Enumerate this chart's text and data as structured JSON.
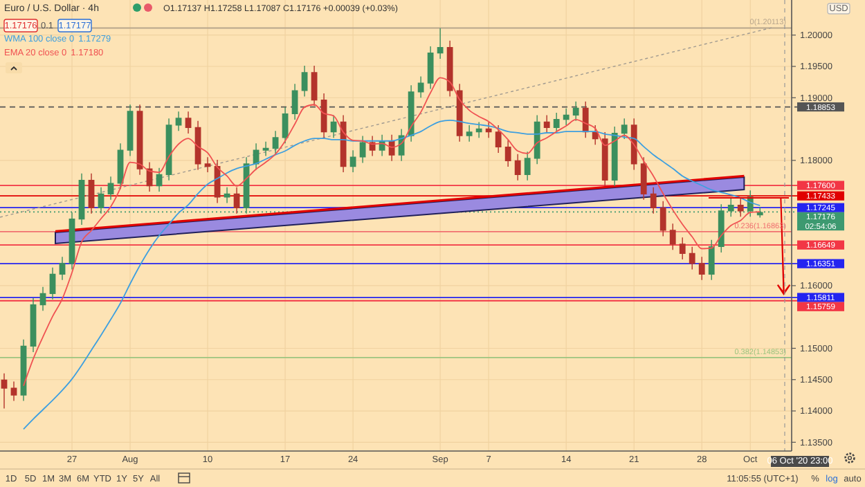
{
  "chart_data": {
    "type": "candlestick",
    "title": "Euro / U.S. Dollar · 4h",
    "categories": [
      null,
      null,
      null,
      null,
      null,
      null,
      null,
      "27",
      null,
      null,
      null,
      null,
      null,
      "Aug",
      null,
      null,
      null,
      null,
      null,
      null,
      null,
      "10",
      null,
      null,
      null,
      null,
      null,
      null,
      null,
      "17",
      null,
      null,
      null,
      null,
      null,
      null,
      "24",
      null,
      null,
      null,
      null,
      null,
      null,
      null,
      null,
      "Sep",
      null,
      null,
      null,
      null,
      "7",
      null,
      null,
      null,
      null,
      null,
      null,
      null,
      "14",
      null,
      null,
      null,
      null,
      null,
      null,
      "21",
      null,
      null,
      null,
      null,
      null,
      null,
      "28",
      null,
      null,
      null,
      null,
      "Oct",
      null
    ],
    "ohlc": [
      [
        1.145,
        1.146,
        1.1404,
        1.1437
      ],
      [
        1.1437,
        1.1447,
        1.1416,
        1.1426
      ],
      [
        1.1426,
        1.1514,
        1.1416,
        1.1504
      ],
      [
        1.1504,
        1.158,
        1.1494,
        1.157
      ],
      [
        1.157,
        1.1598,
        1.156,
        1.1588
      ],
      [
        1.1588,
        1.1629,
        1.1578,
        1.1619
      ],
      [
        1.1619,
        1.1646,
        1.1609,
        1.1636
      ],
      [
        1.1636,
        1.1717,
        1.1626,
        1.1707
      ],
      [
        1.1707,
        1.1779,
        1.1697,
        1.1769
      ],
      [
        1.1769,
        1.1779,
        1.1715,
        1.1725
      ],
      [
        1.1725,
        1.1757,
        1.1715,
        1.1747
      ],
      [
        1.1747,
        1.1774,
        1.1737,
        1.1764
      ],
      [
        1.1764,
        1.1827,
        1.1754,
        1.1817
      ],
      [
        1.1817,
        1.1889,
        1.1807,
        1.1879
      ],
      [
        1.1879,
        1.1889,
        1.1777,
        1.1787
      ],
      [
        1.1787,
        1.1797,
        1.175,
        1.176
      ],
      [
        1.176,
        1.1788,
        1.175,
        1.1778
      ],
      [
        1.1778,
        1.1867,
        1.1768,
        1.1857
      ],
      [
        1.1857,
        1.1878,
        1.1847,
        1.1868
      ],
      [
        1.1868,
        1.1878,
        1.1843,
        1.1853
      ],
      [
        1.1853,
        1.1863,
        1.1785,
        1.1795
      ],
      [
        1.1795,
        1.1805,
        1.1781,
        1.1791
      ],
      [
        1.1791,
        1.1801,
        1.1732,
        1.1742
      ],
      [
        1.1742,
        1.1757,
        1.1732,
        1.1747
      ],
      [
        1.1747,
        1.1757,
        1.1715,
        1.1725
      ],
      [
        1.1725,
        1.1805,
        1.1715,
        1.1795
      ],
      [
        1.1795,
        1.1827,
        1.1785,
        1.1817
      ],
      [
        1.1817,
        1.183,
        1.1807,
        1.182
      ],
      [
        1.182,
        1.1847,
        1.181,
        1.1837
      ],
      [
        1.1837,
        1.1885,
        1.1827,
        1.1875
      ],
      [
        1.1875,
        1.1922,
        1.1865,
        1.1912
      ],
      [
        1.1912,
        1.1951,
        1.1902,
        1.1941
      ],
      [
        1.1941,
        1.1951,
        1.1887,
        1.1897
      ],
      [
        1.1897,
        1.1907,
        1.1836,
        1.1846
      ],
      [
        1.1846,
        1.1872,
        1.1836,
        1.1862
      ],
      [
        1.1862,
        1.1872,
        1.1781,
        1.1791
      ],
      [
        1.1791,
        1.1816,
        1.1781,
        1.1806
      ],
      [
        1.1806,
        1.1839,
        1.1796,
        1.1829
      ],
      [
        1.1829,
        1.1839,
        1.1807,
        1.1817
      ],
      [
        1.1817,
        1.1841,
        1.1807,
        1.1831
      ],
      [
        1.1831,
        1.1841,
        1.1799,
        1.1809
      ],
      [
        1.1809,
        1.185,
        1.1799,
        1.184
      ],
      [
        1.184,
        1.192,
        1.183,
        1.191
      ],
      [
        1.191,
        1.1934,
        1.19,
        1.1924
      ],
      [
        1.1924,
        1.1982,
        1.1914,
        1.1972
      ],
      [
        1.1972,
        1.2011,
        1.1962,
        1.1981
      ],
      [
        1.1981,
        1.1991,
        1.1902,
        1.1912
      ],
      [
        1.1912,
        1.1922,
        1.183,
        1.184
      ],
      [
        1.184,
        1.1856,
        1.183,
        1.1846
      ],
      [
        1.1846,
        1.1861,
        1.1836,
        1.1851
      ],
      [
        1.1851,
        1.1861,
        1.1836,
        1.1846
      ],
      [
        1.1846,
        1.1856,
        1.1812,
        1.1822
      ],
      [
        1.1822,
        1.1832,
        1.179,
        1.18
      ],
      [
        1.18,
        1.181,
        1.1768,
        1.1778
      ],
      [
        1.1778,
        1.1814,
        1.1768,
        1.1804
      ],
      [
        1.1804,
        1.1872,
        1.1794,
        1.1862
      ],
      [
        1.1862,
        1.1872,
        1.1843,
        1.1853
      ],
      [
        1.1853,
        1.1876,
        1.1843,
        1.1866
      ],
      [
        1.1866,
        1.1883,
        1.1856,
        1.1873
      ],
      [
        1.1873,
        1.1894,
        1.1863,
        1.1884
      ],
      [
        1.1884,
        1.1894,
        1.1836,
        1.1846
      ],
      [
        1.1846,
        1.1856,
        1.1825,
        1.1835
      ],
      [
        1.1835,
        1.1845,
        1.1759,
        1.1769
      ],
      [
        1.1769,
        1.1854,
        1.1759,
        1.1844
      ],
      [
        1.1844,
        1.1867,
        1.1834,
        1.1857
      ],
      [
        1.1857,
        1.1867,
        1.1785,
        1.1795
      ],
      [
        1.1795,
        1.1805,
        1.1737,
        1.1747
      ],
      [
        1.1747,
        1.1757,
        1.1715,
        1.1725
      ],
      [
        1.1725,
        1.1735,
        1.1679,
        1.1689
      ],
      [
        1.1689,
        1.1699,
        1.1657,
        1.1667
      ],
      [
        1.1667,
        1.1677,
        1.1642,
        1.1652
      ],
      [
        1.1652,
        1.1662,
        1.1626,
        1.1636
      ],
      [
        1.1636,
        1.1646,
        1.1609,
        1.1619
      ],
      [
        1.1619,
        1.1673,
        1.1609,
        1.1663
      ],
      [
        1.1663,
        1.173,
        1.1653,
        1.172
      ],
      [
        1.172,
        1.1739,
        1.171,
        1.1729
      ],
      [
        1.1729,
        1.1739,
        1.171,
        1.172
      ],
      [
        1.172,
        1.1752,
        1.171,
        1.1742
      ],
      [
        1.17137,
        1.17258,
        1.17087,
        1.17176
      ]
    ],
    "series": [
      {
        "name": "WMA 100 close 0",
        "type": "line",
        "color": "#3d9fe0",
        "values": [
          null,
          null,
          1.1371,
          1.1387,
          1.1402,
          1.1417,
          1.1433,
          1.1451,
          1.1473,
          1.1497,
          1.1521,
          1.1546,
          1.1572,
          1.1603,
          1.1632,
          1.1658,
          1.168,
          1.1698,
          1.1716,
          1.1729,
          1.1747,
          1.1762,
          1.1771,
          1.178,
          1.1787,
          1.1791,
          1.1795,
          1.1802,
          1.1809,
          1.1815,
          1.1824,
          1.1831,
          1.1835,
          1.1835,
          1.1833,
          1.1833,
          1.1831,
          1.1831,
          1.1831,
          1.1831,
          1.1831,
          1.1835,
          1.184,
          1.1846,
          1.1855,
          1.1862,
          1.1864,
          1.1862,
          1.1859,
          1.1857,
          1.1855,
          1.1851,
          1.1846,
          1.1844,
          1.1842,
          1.1842,
          1.1844,
          1.1844,
          1.1846,
          1.1846,
          1.1846,
          1.1846,
          1.1842,
          1.184,
          1.1837,
          1.1835,
          1.1822,
          1.1809,
          1.1798,
          1.1787,
          1.1775,
          1.1767,
          1.176,
          1.1753,
          1.1749,
          1.1745,
          1.174,
          1.1733,
          1.17279
        ]
      },
      {
        "name": "EMA 20 close 0",
        "type": "line",
        "color": "#f05252",
        "values": [
          null,
          null,
          1.144,
          1.1483,
          1.1518,
          1.1551,
          1.1579,
          1.1621,
          1.167,
          1.1688,
          1.1707,
          1.1726,
          1.1756,
          1.1797,
          1.1794,
          1.1783,
          1.1781,
          1.1806,
          1.1826,
          1.1835,
          1.1822,
          1.1812,
          1.1789,
          1.1775,
          1.1759,
          1.1771,
          1.1786,
          1.1797,
          1.181,
          1.1831,
          1.1858,
          1.1885,
          1.1889,
          1.1875,
          1.1871,
          1.1845,
          1.1832,
          1.1831,
          1.1826,
          1.1827,
          1.1821,
          1.1827,
          1.1854,
          1.1877,
          1.1908,
          1.1932,
          1.1925,
          1.1897,
          1.188,
          1.187,
          1.1862,
          1.1849,
          1.1833,
          1.1815,
          1.1811,
          1.1828,
          1.1836,
          1.1846,
          1.1855,
          1.1865,
          1.1859,
          1.1851,
          1.1824,
          1.1831,
          1.184,
          1.1825,
          1.1799,
          1.1775,
          1.1747,
          1.1721,
          1.1698,
          1.1678,
          1.1659,
          1.166,
          1.168,
          1.1696,
          1.1704,
          1.1717,
          1.1718
        ]
      }
    ],
    "ylim": [
      1.1336,
      1.2056
    ],
    "yticks": [
      {
        "value": 1.2,
        "label": "1.20000"
      },
      {
        "value": 1.195,
        "label": "1.19500"
      },
      {
        "value": 1.19,
        "label": "1.19000"
      },
      {
        "value": 1.18,
        "label": "1.18000"
      },
      {
        "value": 1.16,
        "label": "1.16000"
      },
      {
        "value": 1.15,
        "label": "1.15000"
      },
      {
        "value": 1.145,
        "label": "1.14500"
      },
      {
        "value": 1.14,
        "label": "1.14000"
      },
      {
        "value": 1.135,
        "label": "1.13500"
      }
    ],
    "grid": true,
    "legend": "top left",
    "ref_lines": [
      {
        "axis": "y",
        "value": 1.176,
        "label": "1.17600",
        "color": "#f23645"
      },
      {
        "axis": "y",
        "value": 1.17433,
        "label": "1.17433",
        "color": "#e00000"
      },
      {
        "axis": "y",
        "value": 1.17245,
        "label": "1.17245",
        "color": "#2424f0"
      },
      {
        "axis": "y",
        "value": 1.17176,
        "label": "1.17176",
        "color": "#3d9970",
        "line_style": "dotted"
      },
      {
        "axis": "y",
        "value": 1.16649,
        "label": "1.16649",
        "color": "#f23645"
      },
      {
        "axis": "y",
        "value": 1.16351,
        "label": "1.16351",
        "color": "#2424f0"
      },
      {
        "axis": "y",
        "value": 1.15811,
        "label": "1.15811",
        "color": "#2424f0"
      },
      {
        "axis": "y",
        "value": 1.15759,
        "label": "1.15759",
        "color": "#f23645"
      },
      {
        "axis": "y",
        "value": 1.18853,
        "label": "1.18853",
        "color": "#555555",
        "line_style": "dashed"
      },
      {
        "axis": "y",
        "value": 1.20113,
        "color": "#b8a68c"
      },
      {
        "axis": "y",
        "value": 1.16863,
        "color": "#f07070"
      },
      {
        "axis": "y",
        "value": 1.14853,
        "color": "#9cc47f"
      }
    ],
    "annotations": [
      "O1.17137 H1.17258 L1.17087 C1.17176 +0.00039 (+0.03%)",
      "1.17176",
      "0.1",
      "1.17177",
      "USD",
      "06 Oct '20  23:00",
      "1D",
      "5D",
      "1M",
      "3M",
      "6M",
      "YTD",
      "1Y",
      "5Y",
      "All",
      "11:05:55 (UTC+1)",
      "%",
      "log",
      "auto",
      "02:54:06",
      {
        "text": "0(1.20113)",
        "y": 1.20113
      },
      {
        "text": "0.236(1.16863)",
        "y": 1.16863
      },
      {
        "text": "0.382(1.14853)",
        "y": 1.14853
      },
      "1.17279",
      "1.17180"
    ]
  }
}
